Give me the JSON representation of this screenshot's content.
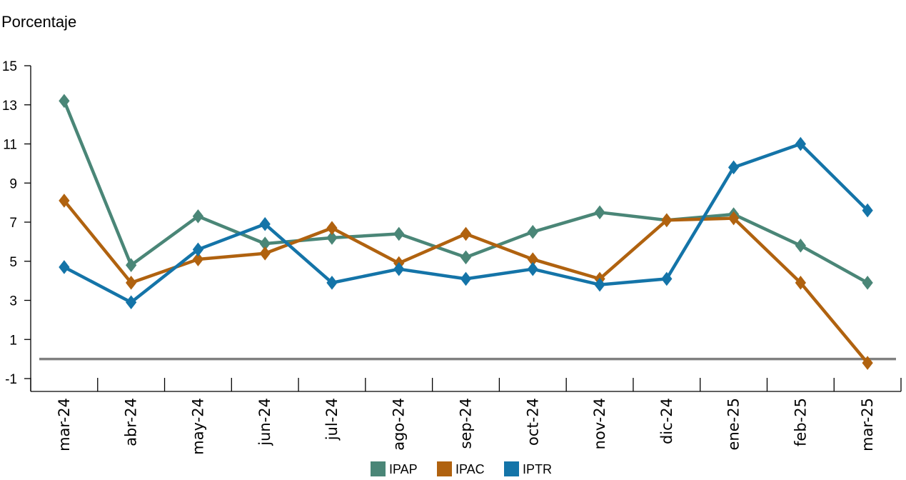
{
  "chart_data": {
    "type": "line",
    "title": "",
    "ylabel": "Porcentaje",
    "xlabel": "",
    "categories": [
      "mar-24",
      "abr-24",
      "may-24",
      "jun-24",
      "jul-24",
      "ago-24",
      "sep-24",
      "oct-24",
      "nov-24",
      "dic-24",
      "ene-25",
      "feb-25",
      "mar-25"
    ],
    "ylim": [
      -1,
      15
    ],
    "yticks": [
      "-1",
      "1",
      "3",
      "5",
      "7",
      "9",
      "11",
      "13",
      "15"
    ],
    "reference_line": 0,
    "legend_position": "bottom-center",
    "series": [
      {
        "name": "IPAP",
        "color": "#4a8677",
        "values": [
          13.2,
          4.8,
          7.3,
          5.9,
          6.2,
          6.4,
          5.2,
          6.5,
          7.5,
          7.1,
          7.4,
          5.8,
          3.9
        ]
      },
      {
        "name": "IPAC",
        "color": "#b0620f",
        "values": [
          8.1,
          3.9,
          5.1,
          5.4,
          6.7,
          4.9,
          6.4,
          5.1,
          4.1,
          7.1,
          7.2,
          3.9,
          -0.2
        ]
      },
      {
        "name": "IPTR",
        "color": "#1474a8",
        "values": [
          4.7,
          2.9,
          5.6,
          6.9,
          3.9,
          4.6,
          4.1,
          4.6,
          3.8,
          4.1,
          9.8,
          11.0,
          7.6
        ]
      }
    ]
  }
}
